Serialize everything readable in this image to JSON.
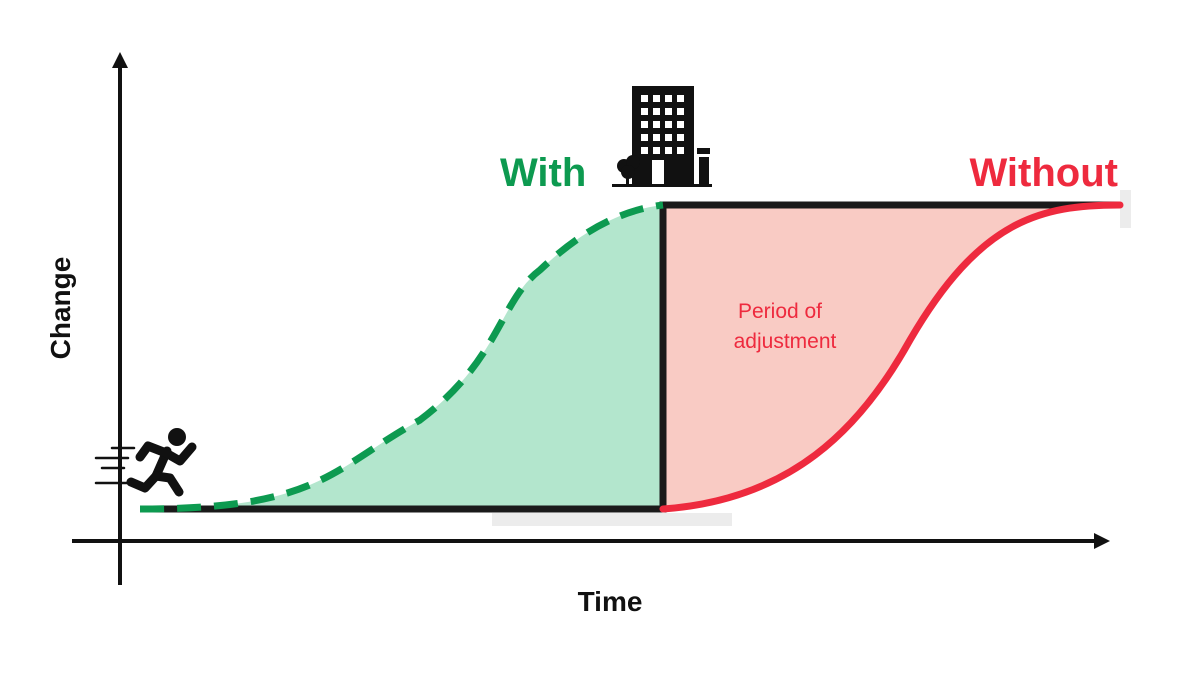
{
  "axes": {
    "x_label": "Time",
    "y_label": "Change"
  },
  "labels": {
    "with": "With",
    "without": "Without",
    "period_line1": "Period of",
    "period_line2": "adjustment"
  },
  "icons": {
    "runner": "running-person-icon",
    "building": "office-building-icon"
  },
  "colors": {
    "with_line": "#0d9a50",
    "with_fill": "#b3e6cd",
    "without_line": "#ee2a3e",
    "without_fill": "#f9cbc4",
    "step_line": "#1a1a1a",
    "axis": "#111111"
  }
}
